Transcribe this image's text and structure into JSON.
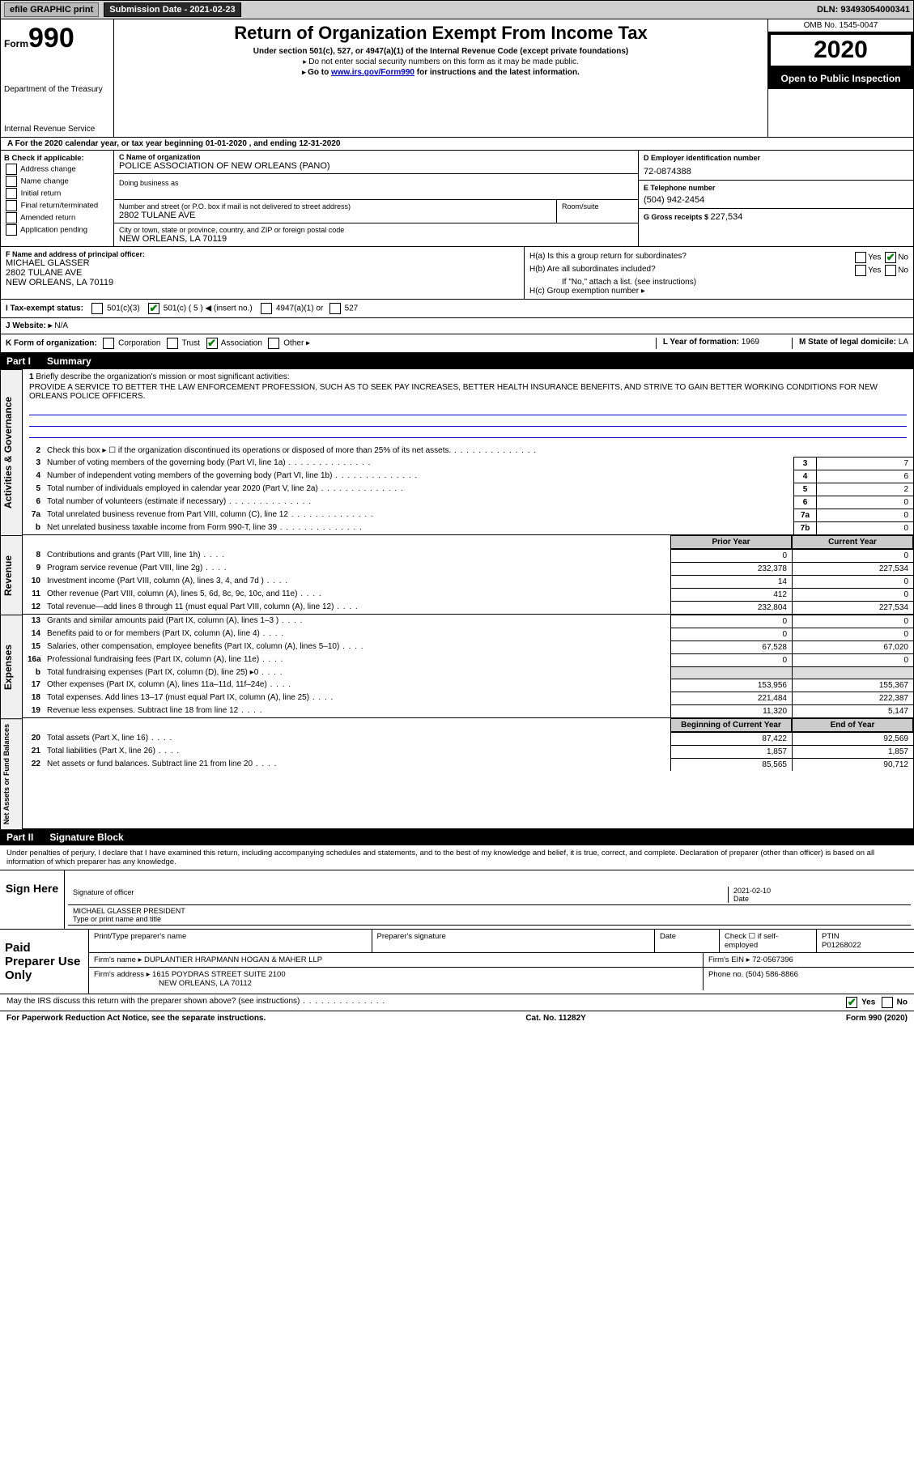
{
  "topbar": {
    "efile_label": "efile GRAPHIC print",
    "submission_label": "Submission Date - 2021-02-23",
    "dln": "DLN: 93493054000341"
  },
  "header": {
    "form_word": "Form",
    "form_num": "990",
    "dept": "Department of the Treasury",
    "irs": "Internal Revenue Service",
    "title": "Return of Organization Exempt From Income Tax",
    "sub": "Under section 501(c), 527, or 4947(a)(1) of the Internal Revenue Code (except private foundations)",
    "sub2": "Do not enter social security numbers on this form as it may be made public.",
    "sub3_prefix": "Go to ",
    "sub3_link": "www.irs.gov/Form990",
    "sub3_suffix": " for instructions and the latest information.",
    "omb": "OMB No. 1545-0047",
    "year": "2020",
    "opi": "Open to Public Inspection"
  },
  "line_a": "A For the 2020 calendar year, or tax year beginning 01-01-2020    , and ending 12-31-2020",
  "block_b": {
    "b_label": "B Check if applicable:",
    "checks": [
      "Address change",
      "Name change",
      "Initial return",
      "Final return/terminated",
      "Amended return",
      "Application pending"
    ],
    "c_label": "C Name of organization",
    "org_name": "POLICE ASSOCIATION OF NEW ORLEANS (PANO)",
    "dba_label": "Doing business as",
    "street_label": "Number and street (or P.O. box if mail is not delivered to street address)",
    "street": "2802 TULANE AVE",
    "room_label": "Room/suite",
    "city_label": "City or town, state or province, country, and ZIP or foreign postal code",
    "city": "NEW ORLEANS, LA  70119",
    "d_label": "D Employer identification number",
    "ein": "72-0874388",
    "e_label": "E Telephone number",
    "phone": "(504) 942-2454",
    "g_label": "G Gross receipts $ ",
    "g_val": "227,534"
  },
  "block_fh": {
    "f_label": "F Name and address of principal officer:",
    "f_name": "MICHAEL GLASSER",
    "f_street": "2802 TULANE AVE",
    "f_city": "NEW ORLEANS, LA  70119",
    "ha": "H(a)  Is this a group return for subordinates?",
    "ha_ans_yes": "Yes",
    "ha_ans_no": "No",
    "hb": "H(b)  Are all subordinates included?",
    "hb_note": "If \"No,\" attach a list. (see instructions)",
    "hc": "H(c)  Group exemption number ▸"
  },
  "line_i": {
    "label": "I  Tax-exempt status:",
    "o501c3": "501(c)(3)",
    "o501c": "501(c) ( 5 ) ◀ (insert no.)",
    "o4947": "4947(a)(1) or",
    "o527": "527"
  },
  "line_j": {
    "label": "J  Website: ▸",
    "val": " N/A"
  },
  "line_k": {
    "label": "K Form of organization:",
    "corp": "Corporation",
    "trust": "Trust",
    "assoc": "Association",
    "other": "Other ▸",
    "l_label": "L Year of formation: ",
    "l_val": "1969",
    "m_label": "M State of legal domicile: ",
    "m_val": "LA"
  },
  "part1": {
    "num": "Part I",
    "title": "Summary"
  },
  "mission": {
    "n": "1",
    "label": "Briefly describe the organization's mission or most significant activities:",
    "text": "PROVIDE A SERVICE TO BETTER THE LAW ENFORCEMENT PROFESSION, SUCH AS TO SEEK PAY INCREASES, BETTER HEALTH INSURANCE BENEFITS, AND STRIVE TO GAIN BETTER WORKING CONDITIONS FOR NEW ORLEANS POLICE OFFICERS."
  },
  "gov_rows": [
    {
      "n": "2",
      "label": "Check this box ▸ ☐  if the organization discontinued its operations or disposed of more than 25% of its net assets.",
      "box": "",
      "val": ""
    },
    {
      "n": "3",
      "label": "Number of voting members of the governing body (Part VI, line 1a)",
      "box": "3",
      "val": "7"
    },
    {
      "n": "4",
      "label": "Number of independent voting members of the governing body (Part VI, line 1b)",
      "box": "4",
      "val": "6"
    },
    {
      "n": "5",
      "label": "Total number of individuals employed in calendar year 2020 (Part V, line 2a)",
      "box": "5",
      "val": "2"
    },
    {
      "n": "6",
      "label": "Total number of volunteers (estimate if necessary)",
      "box": "6",
      "val": "0"
    },
    {
      "n": "7a",
      "label": "Total unrelated business revenue from Part VIII, column (C), line 12",
      "box": "7a",
      "val": "0"
    },
    {
      "n": "b",
      "label": "Net unrelated business taxable income from Form 990-T, line 39",
      "box": "7b",
      "val": "0"
    }
  ],
  "rev_header": {
    "prior": "Prior Year",
    "current": "Current Year"
  },
  "revenue_rows": [
    {
      "n": "8",
      "label": "Contributions and grants (Part VIII, line 1h)",
      "v1": "0",
      "v2": "0"
    },
    {
      "n": "9",
      "label": "Program service revenue (Part VIII, line 2g)",
      "v1": "232,378",
      "v2": "227,534"
    },
    {
      "n": "10",
      "label": "Investment income (Part VIII, column (A), lines 3, 4, and 7d )",
      "v1": "14",
      "v2": "0"
    },
    {
      "n": "11",
      "label": "Other revenue (Part VIII, column (A), lines 5, 6d, 8c, 9c, 10c, and 11e)",
      "v1": "412",
      "v2": "0"
    },
    {
      "n": "12",
      "label": "Total revenue—add lines 8 through 11 (must equal Part VIII, column (A), line 12)",
      "v1": "232,804",
      "v2": "227,534"
    }
  ],
  "expense_rows": [
    {
      "n": "13",
      "label": "Grants and similar amounts paid (Part IX, column (A), lines 1–3 )",
      "v1": "0",
      "v2": "0"
    },
    {
      "n": "14",
      "label": "Benefits paid to or for members (Part IX, column (A), line 4)",
      "v1": "0",
      "v2": "0"
    },
    {
      "n": "15",
      "label": "Salaries, other compensation, employee benefits (Part IX, column (A), lines 5–10)",
      "v1": "67,528",
      "v2": "67,020"
    },
    {
      "n": "16a",
      "label": "Professional fundraising fees (Part IX, column (A), line 11e)",
      "v1": "0",
      "v2": "0"
    },
    {
      "n": "b",
      "label": "Total fundraising expenses (Part IX, column (D), line 25) ▸0",
      "v1": "",
      "v2": "",
      "grey": true
    },
    {
      "n": "17",
      "label": "Other expenses (Part IX, column (A), lines 11a–11d, 11f–24e)",
      "v1": "153,956",
      "v2": "155,367"
    },
    {
      "n": "18",
      "label": "Total expenses. Add lines 13–17 (must equal Part IX, column (A), line 25)",
      "v1": "221,484",
      "v2": "222,387"
    },
    {
      "n": "19",
      "label": "Revenue less expenses. Subtract line 18 from line 12",
      "v1": "11,320",
      "v2": "5,147"
    }
  ],
  "na_header": {
    "beg": "Beginning of Current Year",
    "end": "End of Year"
  },
  "na_rows": [
    {
      "n": "20",
      "label": "Total assets (Part X, line 16)",
      "v1": "87,422",
      "v2": "92,569"
    },
    {
      "n": "21",
      "label": "Total liabilities (Part X, line 26)",
      "v1": "1,857",
      "v2": "1,857"
    },
    {
      "n": "22",
      "label": "Net assets or fund balances. Subtract line 21 from line 20",
      "v1": "85,565",
      "v2": "90,712"
    }
  ],
  "side_labels": {
    "gov": "Activities & Governance",
    "rev": "Revenue",
    "exp": "Expenses",
    "na": "Net Assets or Fund Balances"
  },
  "part2": {
    "num": "Part II",
    "title": "Signature Block"
  },
  "sig_decl": "Under penalties of perjury, I declare that I have examined this return, including accompanying schedules and statements, and to the best of my knowledge and belief, it is true, correct, and complete. Declaration of preparer (other than officer) is based on all information of which preparer has any knowledge.",
  "sign": {
    "left": "Sign Here",
    "sig_label": "Signature of officer",
    "date_label": "Date",
    "date_val": "2021-02-10",
    "name": "MICHAEL GLASSER  PRESIDENT",
    "name_label": "Type or print name and title"
  },
  "prep": {
    "left": "Paid Preparer Use Only",
    "h1": "Print/Type preparer's name",
    "h2": "Preparer's signature",
    "h3": "Date",
    "h4a": "Check ☐ if self-employed",
    "h4b_label": "PTIN",
    "h4b_val": "P01268022",
    "firm_label": "Firm's name     ▸",
    "firm": "DUPLANTIER HRAPMANN HOGAN & MAHER LLP",
    "ein_label": "Firm's EIN ▸ ",
    "ein": "72-0567396",
    "addr_label": "Firm's address ▸",
    "addr1": "1615 POYDRAS STREET SUITE 2100",
    "addr2": "NEW ORLEANS, LA  70112",
    "phone_label": "Phone no. ",
    "phone": "(504) 586-8866"
  },
  "discuss": {
    "text": "May the IRS discuss this return with the preparer shown above? (see instructions)",
    "yes": "Yes",
    "no": "No"
  },
  "paperwork": {
    "left": "For Paperwork Reduction Act Notice, see the separate instructions.",
    "cat": "Cat. No. 11282Y",
    "form": "Form 990 (2020)"
  }
}
